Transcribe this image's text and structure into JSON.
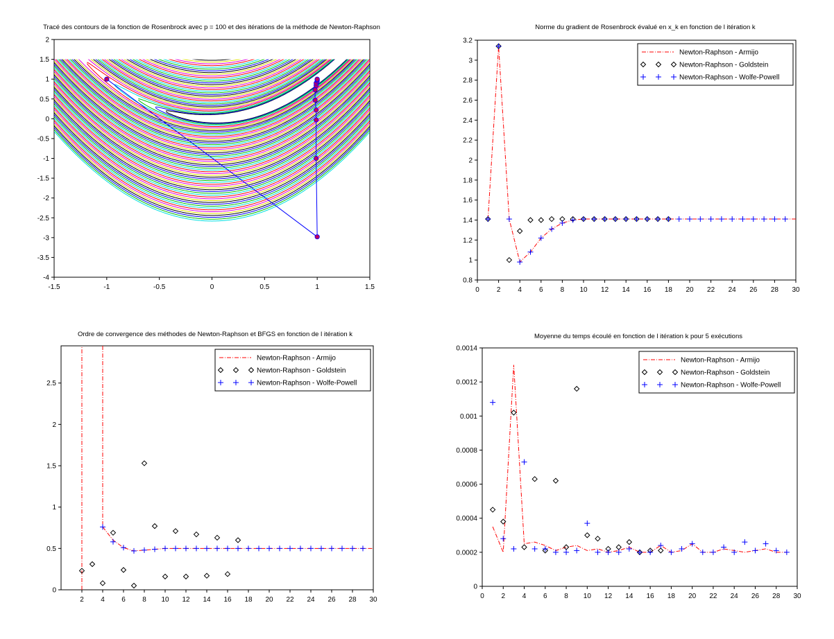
{
  "chart_data": [
    {
      "id": "contour",
      "type": "contour",
      "title": "Tracé des contours de la fonction de Rosenbrock avec p = 100 et des itérations de la méthode de Newton-Raphson",
      "xlim": [
        -1.5,
        1.5
      ],
      "ylim": [
        -4,
        2
      ],
      "xticks": [
        -1.5,
        -1,
        -0.5,
        0,
        0.5,
        1,
        1.5
      ],
      "xtick_labels": [
        "-1.5",
        "-1",
        "-0.5",
        "0",
        "0.5",
        "1",
        "1.5"
      ],
      "yticks": [
        -4,
        -3.5,
        -3,
        -2.5,
        -2,
        -1.5,
        -1,
        -0.5,
        0,
        0.5,
        1,
        1.5,
        2
      ],
      "ytick_labels": [
        "-4",
        "-3.5",
        "-3",
        "-2.5",
        "-2",
        "-1.5",
        "-1",
        "-0.5",
        "0",
        "0.5",
        "1",
        "1.5",
        "2"
      ],
      "grid_y_range": [
        -3.5,
        1.5
      ],
      "contour_colors": [
        "#000000",
        "#0000ff",
        "#00c000",
        "#00e0e0",
        "#ff0000",
        "#e000e0",
        "#e0e000"
      ],
      "path_color": "#0000ff",
      "point_color": "#c00060",
      "path": [
        [
          -1,
          1
        ],
        [
          1,
          -2.98
        ],
        [
          0.99,
          -1
        ],
        [
          0.99,
          -0.03
        ],
        [
          0.99,
          0.22
        ],
        [
          0.98,
          0.47
        ],
        [
          0.98,
          0.73
        ],
        [
          0.99,
          0.84
        ],
        [
          0.99,
          0.9
        ],
        [
          1,
          0.95
        ],
        [
          1,
          0.98
        ],
        [
          1,
          1
        ]
      ]
    },
    {
      "id": "gradnorm",
      "type": "line",
      "title": "Norme du gradient de Rosenbrock évalué en x_k en fonction de l itération k",
      "xlim": [
        0,
        30
      ],
      "ylim": [
        0.8,
        3.2
      ],
      "xticks": [
        0,
        2,
        4,
        6,
        8,
        10,
        12,
        14,
        16,
        18,
        20,
        22,
        24,
        26,
        28,
        30
      ],
      "xtick_labels": [
        "0",
        "2",
        "4",
        "6",
        "8",
        "10",
        "12",
        "14",
        "16",
        "18",
        "20",
        "22",
        "24",
        "26",
        "28",
        "30"
      ],
      "yticks": [
        0.8,
        1,
        1.2,
        1.4,
        1.6,
        1.8,
        2,
        2.2,
        2.4,
        2.6,
        2.8,
        3,
        3.2
      ],
      "ytick_labels": [
        "0.8",
        "1",
        "1.2",
        "1.4",
        "1.6",
        "1.8",
        "2",
        "2.2",
        "2.4",
        "2.6",
        "2.8",
        "3",
        "3.2"
      ],
      "legend_position": "top-right",
      "series": [
        {
          "name": "Newton-Raphson - Armijo",
          "style": "dashdot",
          "color": "#ff0000",
          "x": [
            1,
            2,
            3,
            4,
            5,
            6,
            7,
            8,
            9,
            10,
            11,
            12,
            13,
            14,
            15,
            16,
            17,
            18,
            19,
            20,
            21,
            22,
            23,
            24,
            25,
            26,
            27,
            28,
            29,
            30
          ],
          "y": [
            1.41,
            3.14,
            1.41,
            0.98,
            1.08,
            1.22,
            1.31,
            1.37,
            1.4,
            1.41,
            1.41,
            1.41,
            1.41,
            1.41,
            1.41,
            1.41,
            1.41,
            1.41,
            1.41,
            1.41,
            1.41,
            1.41,
            1.41,
            1.41,
            1.41,
            1.41,
            1.41,
            1.41,
            1.41,
            1.41
          ]
        },
        {
          "name": "Newton-Raphson - Goldstein",
          "style": "diamond",
          "color": "#000000",
          "x": [
            1,
            2,
            3,
            4,
            5,
            6,
            7,
            8,
            9,
            10,
            11,
            12,
            13,
            14,
            15,
            16,
            17,
            18
          ],
          "y": [
            1.41,
            3.14,
            1.0,
            1.29,
            1.4,
            1.4,
            1.41,
            1.41,
            1.41,
            1.41,
            1.41,
            1.41,
            1.41,
            1.41,
            1.41,
            1.41,
            1.41,
            1.41
          ]
        },
        {
          "name": "Newton-Raphson - Wolfe-Powell",
          "style": "plus",
          "color": "#0000ff",
          "x": [
            1,
            2,
            3,
            4,
            5,
            6,
            7,
            8,
            9,
            10,
            11,
            12,
            13,
            14,
            15,
            16,
            17,
            18,
            19,
            20,
            21,
            22,
            23,
            24,
            25,
            26,
            27,
            28,
            29
          ],
          "y": [
            1.41,
            3.14,
            1.41,
            0.98,
            1.08,
            1.22,
            1.31,
            1.37,
            1.4,
            1.41,
            1.41,
            1.41,
            1.41,
            1.41,
            1.41,
            1.41,
            1.41,
            1.41,
            1.41,
            1.41,
            1.41,
            1.41,
            1.41,
            1.41,
            1.41,
            1.41,
            1.41,
            1.41,
            1.41
          ]
        }
      ]
    },
    {
      "id": "order",
      "type": "line",
      "title": "Ordre de convergence des méthodes de Newton-Raphson et BFGS en fonction de l itération k",
      "xlim": [
        0,
        30
      ],
      "ylim": [
        0,
        2.95
      ],
      "xticks": [
        2,
        4,
        6,
        8,
        10,
        12,
        14,
        16,
        18,
        20,
        22,
        24,
        26,
        28,
        30
      ],
      "xtick_labels": [
        "2",
        "4",
        "6",
        "8",
        "10",
        "12",
        "14",
        "16",
        "18",
        "20",
        "22",
        "24",
        "26",
        "28",
        "30"
      ],
      "yticks": [
        0,
        0.5,
        1,
        1.5,
        2,
        2.5
      ],
      "ytick_labels": [
        "0",
        "0.5",
        "1",
        "1.5",
        "2",
        "2.5"
      ],
      "legend_position": "top-right",
      "series": [
        {
          "name": "Newton-Raphson - Armijo",
          "style": "dashdot",
          "color": "#ff0000",
          "segments": [
            {
              "x": [
                2,
                2
              ],
              "y": [
                0,
                2.95
              ]
            },
            {
              "x": [
                4,
                4
              ],
              "y": [
                2.95,
                0.76
              ]
            },
            {
              "x": [
                4,
                5,
                6,
                7,
                8,
                9,
                10,
                11,
                12,
                13,
                14,
                15,
                16,
                17,
                18,
                19,
                20,
                21,
                22,
                23,
                24,
                25,
                26,
                27,
                28,
                29,
                30
              ],
              "y": [
                0.76,
                0.6,
                0.51,
                0.47,
                0.48,
                0.49,
                0.5,
                0.5,
                0.5,
                0.5,
                0.5,
                0.5,
                0.5,
                0.5,
                0.5,
                0.5,
                0.5,
                0.5,
                0.5,
                0.5,
                0.5,
                0.5,
                0.5,
                0.5,
                0.5,
                0.5,
                0.5
              ]
            }
          ]
        },
        {
          "name": "Newton-Raphson - Goldstein",
          "style": "diamond",
          "color": "#000000",
          "x": [
            2,
            3,
            4,
            5,
            6,
            7,
            8,
            9,
            10,
            11,
            12,
            13,
            14,
            15,
            16,
            17
          ],
          "y": [
            0.23,
            0.31,
            0.08,
            0.69,
            0.24,
            0.05,
            1.53,
            0.77,
            0.16,
            0.71,
            0.16,
            0.67,
            0.17,
            0.63,
            0.19,
            0.6
          ]
        },
        {
          "name": "Newton-Raphson - Wolfe-Powell",
          "style": "plus",
          "color": "#0000ff",
          "x": [
            4,
            5,
            6,
            7,
            8,
            9,
            10,
            11,
            12,
            13,
            14,
            15,
            16,
            17,
            18,
            19,
            20,
            21,
            22,
            23,
            24,
            25,
            26,
            27,
            28,
            29
          ],
          "y": [
            0.76,
            0.58,
            0.51,
            0.47,
            0.48,
            0.49,
            0.5,
            0.5,
            0.5,
            0.5,
            0.5,
            0.5,
            0.5,
            0.5,
            0.5,
            0.5,
            0.5,
            0.5,
            0.5,
            0.5,
            0.5,
            0.5,
            0.5,
            0.5,
            0.5,
            0.5
          ]
        }
      ]
    },
    {
      "id": "time",
      "type": "line",
      "title": "Moyenne du temps écoulé en fonction de l itération k pour 5 exécutions",
      "xlim": [
        0,
        30
      ],
      "ylim": [
        0,
        0.0014
      ],
      "xticks": [
        0,
        2,
        4,
        6,
        8,
        10,
        12,
        14,
        16,
        18,
        20,
        22,
        24,
        26,
        28,
        30
      ],
      "xtick_labels": [
        "0",
        "2",
        "4",
        "6",
        "8",
        "10",
        "12",
        "14",
        "16",
        "18",
        "20",
        "22",
        "24",
        "26",
        "28",
        "30"
      ],
      "yticks": [
        0,
        0.0002,
        0.0004,
        0.0006,
        0.0008,
        0.001,
        0.0012,
        0.0014
      ],
      "ytick_labels": [
        "0",
        "0.0002",
        "0.0004",
        "0.0006",
        "0.0008",
        "0.001",
        "0.0012",
        "0.0014"
      ],
      "legend_position": "top-right",
      "series": [
        {
          "name": "Newton-Raphson - Armijo",
          "style": "dashdot",
          "color": "#ff0000",
          "x": [
            1,
            2,
            3,
            4,
            5,
            6,
            7,
            8,
            9,
            10,
            11,
            12,
            13,
            14,
            15,
            16,
            17,
            18,
            19,
            20,
            21,
            22,
            23,
            24,
            25,
            26,
            27,
            28,
            29
          ],
          "y": [
            0.00035,
            0.0002,
            0.0013,
            0.00025,
            0.00026,
            0.00024,
            0.00021,
            0.00023,
            0.00024,
            0.00021,
            0.00022,
            0.0002,
            0.00021,
            0.00023,
            0.0002,
            0.0002,
            0.00024,
            0.0002,
            0.00021,
            0.00025,
            0.0002,
            0.0002,
            0.00022,
            0.00021,
            0.0002,
            0.00021,
            0.00022,
            0.0002,
            0.0002
          ]
        },
        {
          "name": "Newton-Raphson - Goldstein",
          "style": "diamond",
          "color": "#000000",
          "x": [
            1,
            2,
            3,
            4,
            5,
            6,
            7,
            8,
            9,
            10,
            11,
            12,
            13,
            14,
            15,
            16,
            17
          ],
          "y": [
            0.00045,
            0.00038,
            0.00102,
            0.00023,
            0.00063,
            0.00021,
            0.00062,
            0.00023,
            0.00116,
            0.0003,
            0.00028,
            0.00022,
            0.00023,
            0.00026,
            0.0002,
            0.00021,
            0.00021
          ]
        },
        {
          "name": "Newton-Raphson - Wolfe-Powell",
          "style": "plus",
          "color": "#0000ff",
          "x": [
            1,
            2,
            3,
            4,
            5,
            6,
            7,
            8,
            9,
            10,
            11,
            12,
            13,
            14,
            15,
            16,
            17,
            18,
            19,
            20,
            21,
            22,
            23,
            24,
            25,
            26,
            27,
            28,
            29
          ],
          "y": [
            0.00108,
            0.00028,
            0.00022,
            0.00073,
            0.00022,
            0.00022,
            0.0002,
            0.0002,
            0.00021,
            0.00037,
            0.0002,
            0.0002,
            0.0002,
            0.00022,
            0.0002,
            0.0002,
            0.00024,
            0.0002,
            0.00022,
            0.00025,
            0.0002,
            0.0002,
            0.00023,
            0.0002,
            0.00026,
            0.00021,
            0.00025,
            0.00021,
            0.0002
          ]
        }
      ]
    }
  ]
}
